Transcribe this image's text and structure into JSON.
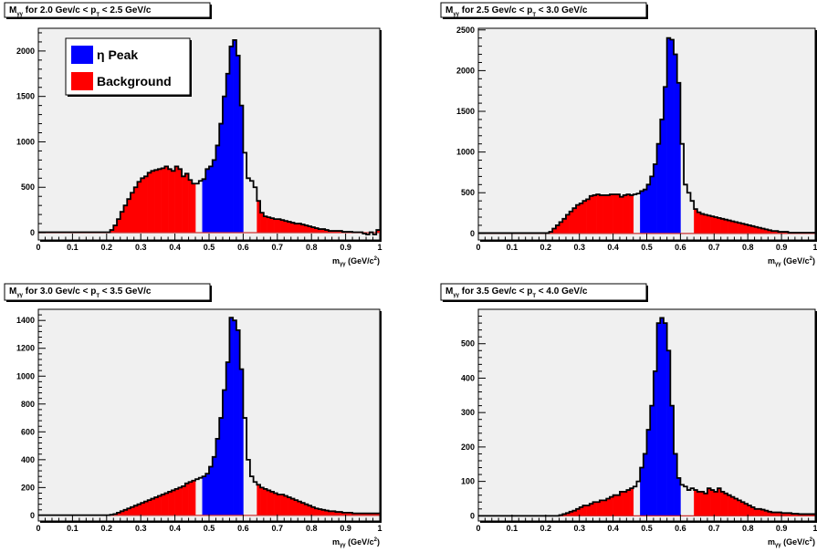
{
  "legend": {
    "items": [
      {
        "label": "η Peak",
        "color": "#0000ff"
      },
      {
        "label": "Background",
        "color": "#ff0000"
      }
    ]
  },
  "colors": {
    "peak": "#0000ff",
    "background": "#ff0000",
    "frame_bg": "#f0f0f0",
    "outline": "#000000",
    "baseline": "#cc3333"
  },
  "chart_data": [
    {
      "type": "histogram",
      "title_parts": {
        "m": "M",
        "sub": "γγ",
        "mid": " for 2.0 Gev/c < p",
        "sub2": "T",
        "end": " < 2.5 GeV/c"
      },
      "xlabel_parts": {
        "m": "m",
        "sub": "γγ",
        "unit": " (GeV/c",
        "sup": "2",
        "close": ")"
      },
      "xlim": [
        0,
        1
      ],
      "ylim": [
        -80,
        2250
      ],
      "xticks": [
        "0",
        "0.1",
        "0.2",
        "0.3",
        "0.4",
        "0.5",
        "0.6",
        "0.7",
        "0.8",
        "0.9",
        "1"
      ],
      "yticks": [
        {
          "v": 0,
          "l": "0"
        },
        {
          "v": 500,
          "l": "500"
        },
        {
          "v": 1000,
          "l": "1000"
        },
        {
          "v": 1500,
          "l": "1500"
        },
        {
          "v": 2000,
          "l": "2000"
        }
      ],
      "bin_width": 0.01,
      "peak_range": [
        0.48,
        0.6
      ],
      "background_ranges": [
        [
          0,
          0.46
        ],
        [
          0.64,
          1.0
        ]
      ],
      "values": [
        5,
        5,
        5,
        5,
        5,
        5,
        5,
        5,
        5,
        5,
        5,
        5,
        5,
        5,
        5,
        5,
        5,
        5,
        5,
        5,
        5,
        30,
        80,
        150,
        230,
        300,
        370,
        440,
        500,
        560,
        600,
        620,
        660,
        680,
        690,
        700,
        710,
        730,
        700,
        680,
        730,
        700,
        620,
        650,
        580,
        540,
        540,
        570,
        590,
        700,
        730,
        800,
        960,
        1200,
        1500,
        1750,
        2050,
        2120,
        1950,
        1400,
        880,
        600,
        570,
        500,
        350,
        220,
        180,
        170,
        160,
        150,
        150,
        140,
        130,
        120,
        110,
        100,
        100,
        90,
        80,
        70,
        60,
        50,
        40,
        40,
        30,
        20,
        20,
        20,
        20,
        10,
        10,
        10,
        5,
        5,
        5,
        -10,
        -20,
        5,
        -20,
        30
      ]
    },
    {
      "type": "histogram",
      "title_parts": {
        "m": "M",
        "sub": "γγ",
        "mid": " for 2.5 Gev/c < p",
        "sub2": "T",
        "end": " < 3.0 GeV/c"
      },
      "xlabel_parts": {
        "m": "m",
        "sub": "γγ",
        "unit": " (GeV/c",
        "sup": "2",
        "close": ")"
      },
      "xlim": [
        0,
        1
      ],
      "ylim": [
        -80,
        2520
      ],
      "xticks": [
        "0",
        "0.1",
        "0.2",
        "0.3",
        "0.4",
        "0.5",
        "0.6",
        "0.7",
        "0.8",
        "0.9",
        "1"
      ],
      "yticks": [
        {
          "v": 0,
          "l": "0"
        },
        {
          "v": 500,
          "l": "500"
        },
        {
          "v": 1000,
          "l": "1000"
        },
        {
          "v": 1500,
          "l": "1500"
        },
        {
          "v": 2000,
          "l": "2000"
        },
        {
          "v": 2500,
          "l": "2500"
        }
      ],
      "bin_width": 0.01,
      "peak_range": [
        0.48,
        0.6
      ],
      "background_ranges": [
        [
          0,
          0.46
        ],
        [
          0.64,
          1.0
        ]
      ],
      "values": [
        5,
        5,
        5,
        5,
        5,
        5,
        5,
        5,
        5,
        5,
        5,
        5,
        5,
        5,
        5,
        5,
        5,
        5,
        5,
        5,
        5,
        20,
        60,
        100,
        140,
        180,
        230,
        270,
        310,
        350,
        370,
        400,
        420,
        460,
        470,
        480,
        470,
        470,
        470,
        480,
        480,
        480,
        450,
        470,
        480,
        470,
        480,
        490,
        520,
        540,
        600,
        700,
        850,
        1100,
        1400,
        1800,
        2400,
        2380,
        2200,
        1850,
        1100,
        600,
        500,
        400,
        300,
        260,
        240,
        230,
        220,
        210,
        200,
        190,
        180,
        170,
        160,
        150,
        140,
        130,
        120,
        110,
        100,
        90,
        80,
        70,
        60,
        50,
        40,
        30,
        30,
        20,
        20,
        20,
        10,
        10,
        10,
        10,
        10,
        10,
        10,
        10
      ]
    },
    {
      "type": "histogram",
      "title_parts": {
        "m": "M",
        "sub": "γγ",
        "mid": " for 3.0 Gev/c < p",
        "sub2": "T",
        "end": " < 3.5 GeV/c"
      },
      "xlabel_parts": {
        "m": "m",
        "sub": "γγ",
        "unit": " (GeV/c",
        "sup": "2",
        "close": ")"
      },
      "xlim": [
        0,
        1
      ],
      "ylim": [
        -40,
        1480
      ],
      "xticks": [
        "0",
        "0.1",
        "0.2",
        "0.3",
        "0.4",
        "0.5",
        "0.6",
        "0.7",
        "0.8",
        "0.9",
        "1"
      ],
      "yticks": [
        {
          "v": 0,
          "l": "0"
        },
        {
          "v": 200,
          "l": "200"
        },
        {
          "v": 400,
          "l": "400"
        },
        {
          "v": 600,
          "l": "600"
        },
        {
          "v": 800,
          "l": "800"
        },
        {
          "v": 1000,
          "l": "1000"
        },
        {
          "v": 1200,
          "l": "1200"
        },
        {
          "v": 1400,
          "l": "1400"
        }
      ],
      "bin_width": 0.01,
      "peak_range": [
        0.48,
        0.6
      ],
      "background_ranges": [
        [
          0,
          0.46
        ],
        [
          0.64,
          1.0
        ]
      ],
      "values": [
        2,
        2,
        2,
        2,
        2,
        2,
        2,
        2,
        2,
        2,
        2,
        2,
        2,
        2,
        2,
        2,
        2,
        2,
        2,
        2,
        2,
        5,
        10,
        20,
        30,
        40,
        50,
        60,
        70,
        80,
        90,
        100,
        110,
        120,
        130,
        140,
        150,
        160,
        170,
        180,
        190,
        200,
        210,
        230,
        240,
        250,
        260,
        270,
        280,
        300,
        350,
        420,
        550,
        700,
        900,
        1100,
        1420,
        1400,
        1330,
        1050,
        700,
        400,
        280,
        240,
        220,
        200,
        190,
        180,
        170,
        160,
        150,
        150,
        140,
        130,
        120,
        110,
        100,
        90,
        80,
        70,
        60,
        50,
        45,
        40,
        35,
        30,
        30,
        25,
        25,
        20,
        20,
        20,
        15,
        15,
        15,
        15,
        15,
        15,
        15,
        15
      ]
    },
    {
      "type": "histogram",
      "title_parts": {
        "m": "M",
        "sub": "γγ",
        "mid": " for 3.5 Gev/c < p",
        "sub2": "T",
        "end": " < 4.0 GeV/c"
      },
      "xlabel_parts": {
        "m": "m",
        "sub": "γγ",
        "unit": " (GeV/c",
        "sup": "2",
        "close": ")"
      },
      "xlim": [
        0,
        1
      ],
      "ylim": [
        -15,
        600
      ],
      "xticks": [
        "0",
        "0.1",
        "0.2",
        "0.3",
        "0.4",
        "0.5",
        "0.6",
        "0.7",
        "0.8",
        "0.9",
        "1"
      ],
      "yticks": [
        {
          "v": 0,
          "l": "0"
        },
        {
          "v": 100,
          "l": "100"
        },
        {
          "v": 200,
          "l": "200"
        },
        {
          "v": 300,
          "l": "300"
        },
        {
          "v": 400,
          "l": "400"
        },
        {
          "v": 500,
          "l": "500"
        }
      ],
      "bin_width": 0.01,
      "peak_range": [
        0.48,
        0.6
      ],
      "background_ranges": [
        [
          0,
          0.46
        ],
        [
          0.64,
          1.0
        ]
      ],
      "values": [
        0,
        0,
        0,
        0,
        0,
        0,
        0,
        0,
        0,
        0,
        0,
        0,
        0,
        0,
        0,
        0,
        0,
        0,
        0,
        0,
        0,
        0,
        0,
        0,
        2,
        5,
        8,
        12,
        15,
        20,
        25,
        30,
        30,
        35,
        40,
        40,
        45,
        45,
        50,
        55,
        60,
        60,
        70,
        70,
        75,
        80,
        85,
        100,
        140,
        180,
        250,
        320,
        420,
        560,
        575,
        560,
        480,
        320,
        180,
        110,
        90,
        85,
        75,
        80,
        75,
        70,
        70,
        65,
        80,
        75,
        70,
        80,
        70,
        65,
        60,
        55,
        50,
        45,
        40,
        35,
        30,
        25,
        20,
        20,
        18,
        15,
        12,
        10,
        10,
        10,
        8,
        8,
        8,
        6,
        6,
        5,
        5,
        5,
        5,
        5
      ]
    }
  ]
}
